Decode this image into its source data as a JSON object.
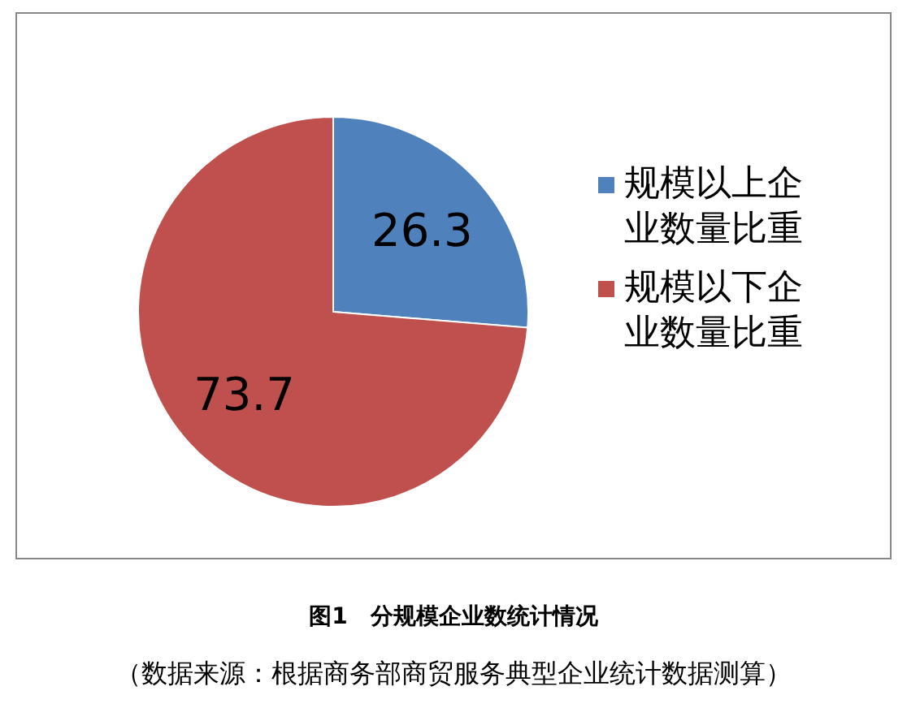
{
  "chart_data": {
    "type": "pie",
    "title": "图1　分规模企业数统计情况",
    "categories": [
      "规模以上企业数量比重",
      "规模以下企业数量比重"
    ],
    "values": [
      26.3,
      73.7
    ],
    "colors": [
      "#4f81bd",
      "#c0504d"
    ],
    "data_labels": true,
    "legend": "right",
    "annotations": [
      "（数据来源：根据商务部商贸服务典型企业统计数据测算）"
    ]
  }
}
